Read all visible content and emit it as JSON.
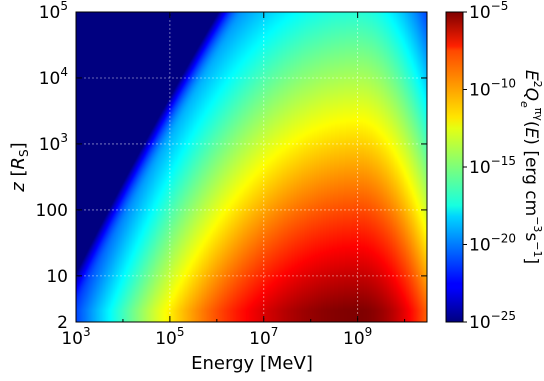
{
  "chart_data": {
    "type": "heatmap",
    "title": "",
    "xlabel": "Energy [MeV]",
    "ylabel": "z [R_S]",
    "xscale": "log",
    "yscale": "log",
    "xlim": [
      1000,
      30000000000
    ],
    "ylim": [
      2,
      100000
    ],
    "x_ticks": [
      {
        "value": 1000,
        "base": "10",
        "exp": "3"
      },
      {
        "value": 100000,
        "base": "10",
        "exp": "5"
      },
      {
        "value": 10000000,
        "base": "10",
        "exp": "7"
      },
      {
        "value": 1000000000,
        "base": "10",
        "exp": "9"
      }
    ],
    "y_ticks": [
      {
        "value": 2,
        "base": "2",
        "exp": ""
      },
      {
        "value": 10,
        "base": "10",
        "exp": ""
      },
      {
        "value": 100,
        "base": "100",
        "exp": ""
      },
      {
        "value": 1000,
        "base": "10",
        "exp": "3"
      },
      {
        "value": 10000,
        "base": "10",
        "exp": "4"
      },
      {
        "value": 100000,
        "base": "10",
        "exp": "5"
      }
    ],
    "colorbar": {
      "label": "E²Qₑ^(πγ)(E) [erg cm⁻³s⁻¹]",
      "scale": "log",
      "range": [
        1e-25,
        1e-05
      ],
      "colormap": "jet",
      "ticks": [
        {
          "value": 1e-05,
          "base": "10",
          "exp": "−5"
        },
        {
          "value": 1e-10,
          "base": "10",
          "exp": "−10"
        },
        {
          "value": 1e-15,
          "base": "10",
          "exp": "−15"
        },
        {
          "value": 1e-20,
          "base": "10",
          "exp": "−20"
        },
        {
          "value": 1e-25,
          "base": "10",
          "exp": "−25"
        }
      ]
    },
    "grid": true,
    "field_peak": {
      "energy": 1000000000,
      "z": 3,
      "value": 1e-05
    },
    "field_notes": "log10 of value decreases with height z and drops sharply above a cutoff height that rises with energy; peak near E=1e9 MeV at low z"
  }
}
